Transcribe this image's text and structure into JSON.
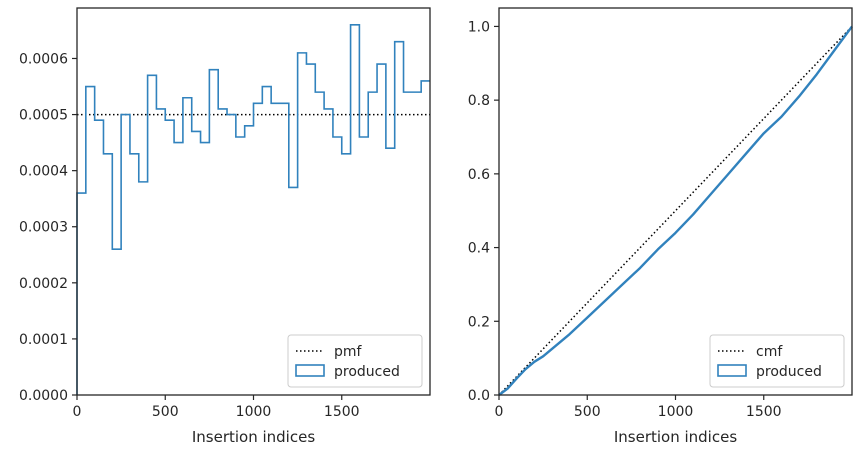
{
  "colors": {
    "produced": "#3182bd",
    "reference": "#000000",
    "spine": "#262626",
    "legend_border": "#cccccc"
  },
  "chart_data": [
    {
      "type": "histogram-step",
      "xlabel": "Insertion indices",
      "ylabel": "",
      "xlim": [
        0,
        2000
      ],
      "ylim": [
        0,
        0.00069
      ],
      "xticks": [
        0,
        500,
        1000,
        1500
      ],
      "xtick_labels": [
        "0",
        "500",
        "1000",
        "1500"
      ],
      "yticks": [
        0,
        0.0001,
        0.0002,
        0.0003,
        0.0004,
        0.0005,
        0.0006
      ],
      "ytick_labels": [
        "0.0000",
        "0.0001",
        "0.0002",
        "0.0003",
        "0.0004",
        "0.0005",
        "0.0006"
      ],
      "legend": {
        "position": "lower right",
        "entries": [
          "pmf",
          "produced"
        ]
      },
      "reference": {
        "name": "pmf",
        "style": "dotted",
        "value": 0.0005
      },
      "series": [
        {
          "name": "produced",
          "bin_width": 50,
          "values": [
            0.00036,
            0.00055,
            0.00049,
            0.00043,
            0.00026,
            0.0005,
            0.00043,
            0.00038,
            0.00057,
            0.00051,
            0.00049,
            0.00045,
            0.00053,
            0.00047,
            0.00045,
            0.00058,
            0.00051,
            0.0005,
            0.00046,
            0.00048,
            0.00052,
            0.00055,
            0.00052,
            0.00052,
            0.00037,
            0.00061,
            0.00059,
            0.00054,
            0.00051,
            0.00046,
            0.00043,
            0.00066,
            0.00046,
            0.00054,
            0.00059,
            0.00044,
            0.00063,
            0.00054,
            0.00054,
            0.00056
          ]
        }
      ]
    },
    {
      "type": "line",
      "xlabel": "Insertion indices",
      "ylabel": "",
      "xlim": [
        0,
        2000
      ],
      "ylim": [
        0,
        1.05
      ],
      "xticks": [
        0,
        500,
        1000,
        1500
      ],
      "xtick_labels": [
        "0",
        "500",
        "1000",
        "1500"
      ],
      "yticks": [
        0,
        0.2,
        0.4,
        0.6,
        0.8,
        1.0
      ],
      "ytick_labels": [
        "0.0",
        "0.2",
        "0.4",
        "0.6",
        "0.8",
        "1.0"
      ],
      "legend": {
        "position": "lower right",
        "entries": [
          "cmf",
          "produced"
        ]
      },
      "reference": {
        "name": "cmf",
        "style": "dotted",
        "x": [
          0,
          2000
        ],
        "y": [
          0,
          1.0
        ]
      },
      "series": [
        {
          "name": "produced",
          "x": [
            0,
            50,
            100,
            150,
            200,
            250,
            300,
            400,
            500,
            600,
            700,
            800,
            900,
            1000,
            1100,
            1200,
            1300,
            1400,
            1500,
            1600,
            1700,
            1800,
            1900,
            2000
          ],
          "y": [
            0,
            0.018,
            0.045,
            0.07,
            0.09,
            0.105,
            0.125,
            0.165,
            0.21,
            0.255,
            0.3,
            0.345,
            0.395,
            0.44,
            0.49,
            0.545,
            0.6,
            0.655,
            0.71,
            0.755,
            0.81,
            0.87,
            0.935,
            1.0
          ]
        }
      ]
    }
  ]
}
